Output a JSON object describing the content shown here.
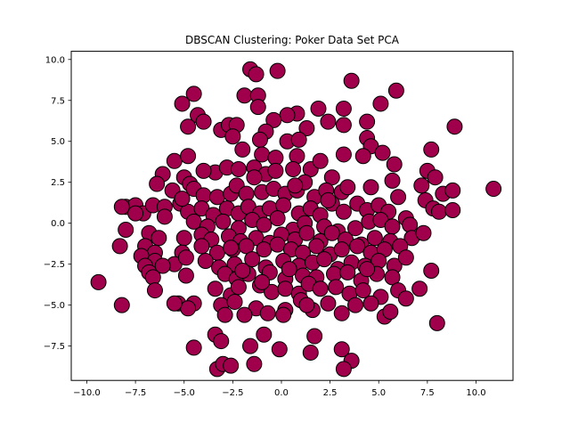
{
  "chart_data": {
    "type": "scatter",
    "title": "DBSCAN Clustering: Poker Data Set PCA",
    "xlabel": "",
    "ylabel": "",
    "xlim": [
      -10.8,
      11.9
    ],
    "ylim": [
      -9.6,
      10.5
    ],
    "xticks": [
      -10.0,
      -7.5,
      -5.0,
      -2.5,
      0.0,
      2.5,
      5.0,
      7.5,
      10.0
    ],
    "xtick_labels": [
      "−10.0",
      "−7.5",
      "−5.0",
      "−2.5",
      "0.0",
      "2.5",
      "5.0",
      "7.5",
      "10.0"
    ],
    "yticks": [
      -7.5,
      -5.0,
      -2.5,
      0.0,
      2.5,
      5.0,
      7.5,
      10.0
    ],
    "ytick_labels": [
      "−7.5",
      "−5.0",
      "−2.5",
      "0.0",
      "2.5",
      "5.0",
      "7.5",
      "10.0"
    ],
    "grid": false,
    "legend": false,
    "marker_color": "#a0004b",
    "marker_edge_color": "#000000",
    "series": [
      {
        "points": [
          [
            -1.6,
            9.4
          ],
          [
            -1.3,
            9.1
          ],
          [
            -0.2,
            9.3
          ],
          [
            3.6,
            8.7
          ],
          [
            5.9,
            8.1
          ],
          [
            -4.5,
            7.9
          ],
          [
            -1.9,
            7.8
          ],
          [
            -1.2,
            7.8
          ],
          [
            1.9,
            7.0
          ],
          [
            3.2,
            7.0
          ],
          [
            5.1,
            7.3
          ],
          [
            -5.1,
            7.3
          ],
          [
            -1.2,
            7.1
          ],
          [
            0.8,
            6.7
          ],
          [
            0.3,
            6.6
          ],
          [
            -4.3,
            6.6
          ],
          [
            -4.0,
            6.2
          ],
          [
            -3.1,
            5.7
          ],
          [
            -2.7,
            6.0
          ],
          [
            -2.3,
            6.0
          ],
          [
            -2.5,
            5.3
          ],
          [
            -0.4,
            6.3
          ],
          [
            -0.8,
            5.6
          ],
          [
            1.3,
            5.8
          ],
          [
            2.4,
            6.2
          ],
          [
            4.4,
            6.2
          ],
          [
            3.2,
            6.0
          ],
          [
            -4.8,
            5.9
          ],
          [
            0.3,
            5.0
          ],
          [
            0.9,
            5.1
          ],
          [
            4.4,
            5.2
          ],
          [
            4.6,
            4.7
          ],
          [
            5.2,
            4.3
          ],
          [
            7.7,
            4.5
          ],
          [
            8.9,
            5.9
          ],
          [
            -5.5,
            3.8
          ],
          [
            -4.8,
            4.1
          ],
          [
            -1.1,
            5.1
          ],
          [
            -2.0,
            4.5
          ],
          [
            -1.0,
            4.2
          ],
          [
            -0.3,
            4.0
          ],
          [
            0.8,
            4.1
          ],
          [
            -6.1,
            3.0
          ],
          [
            -5.0,
            2.8
          ],
          [
            -4.7,
            2.4
          ],
          [
            -3.4,
            3.1
          ],
          [
            -2.8,
            3.4
          ],
          [
            -2.2,
            3.3
          ],
          [
            -1.4,
            3.4
          ],
          [
            -0.8,
            3.0
          ],
          [
            -0.3,
            3.2
          ],
          [
            0.6,
            3.3
          ],
          [
            1.5,
            3.3
          ],
          [
            2.0,
            3.8
          ],
          [
            2.6,
            2.8
          ],
          [
            3.2,
            4.2
          ],
          [
            4.2,
            4.1
          ],
          [
            5.8,
            3.6
          ],
          [
            7.5,
            3.2
          ],
          [
            7.9,
            2.8
          ],
          [
            -6.4,
            2.4
          ],
          [
            -5.6,
            2.0
          ],
          [
            -4.5,
            2.1
          ],
          [
            -4.0,
            1.7
          ],
          [
            -3.3,
            1.6
          ],
          [
            -2.6,
            1.8
          ],
          [
            -2.3,
            2.3
          ],
          [
            -1.8,
            1.8
          ],
          [
            -1.0,
            1.9
          ],
          [
            -0.4,
            2.1
          ],
          [
            0.2,
            1.8
          ],
          [
            0.8,
            2.0
          ],
          [
            1.2,
            2.5
          ],
          [
            1.7,
            1.6
          ],
          [
            2.3,
            2.0
          ],
          [
            3.1,
            1.9
          ],
          [
            3.4,
            2.2
          ],
          [
            4.6,
            2.2
          ],
          [
            5.7,
            2.6
          ],
          [
            7.2,
            2.3
          ],
          [
            8.3,
            1.8
          ],
          [
            8.8,
            2.0
          ],
          [
            10.9,
            2.1
          ],
          [
            -8.0,
            1.0
          ],
          [
            -7.5,
            1.1
          ],
          [
            -7.1,
            0.6
          ],
          [
            -6.6,
            1.1
          ],
          [
            -6.0,
            1.0
          ],
          [
            -5.2,
            1.2
          ],
          [
            -4.8,
            0.7
          ],
          [
            -4.1,
            0.9
          ],
          [
            -3.5,
            0.5
          ],
          [
            -2.8,
            0.9
          ],
          [
            -2.2,
            0.6
          ],
          [
            -1.7,
            1.0
          ],
          [
            -1.1,
            0.6
          ],
          [
            -0.6,
            0.9
          ],
          [
            0.1,
            1.1
          ],
          [
            0.9,
            0.6
          ],
          [
            1.5,
            0.9
          ],
          [
            2.0,
            0.5
          ],
          [
            2.6,
            1.2
          ],
          [
            3.2,
            0.7
          ],
          [
            3.9,
            1.2
          ],
          [
            4.4,
            0.8
          ],
          [
            5.0,
            1.1
          ],
          [
            5.5,
            0.7
          ],
          [
            6.4,
            0.3
          ],
          [
            7.4,
            1.4
          ],
          [
            7.8,
            0.9
          ],
          [
            8.1,
            0.7
          ],
          [
            8.8,
            0.8
          ],
          [
            -8.2,
            1.0
          ],
          [
            -7.5,
            0.6
          ],
          [
            -6.0,
            0.4
          ],
          [
            -4.5,
            0.1
          ],
          [
            -3.8,
            -0.2
          ],
          [
            -3.0,
            0.1
          ],
          [
            -2.2,
            -0.3
          ],
          [
            -1.5,
            0.2
          ],
          [
            -0.9,
            -0.1
          ],
          [
            -0.2,
            0.3
          ],
          [
            0.6,
            -0.4
          ],
          [
            1.2,
            0.0
          ],
          [
            2.2,
            -0.2
          ],
          [
            2.9,
            -0.5
          ],
          [
            3.8,
            -0.3
          ],
          [
            4.5,
            0.1
          ],
          [
            5.1,
            0.2
          ],
          [
            5.7,
            -0.2
          ],
          [
            6.6,
            -0.1
          ],
          [
            -8.0,
            -0.4
          ],
          [
            -6.8,
            -0.6
          ],
          [
            -6.3,
            -0.9
          ],
          [
            -5.0,
            -0.9
          ],
          [
            -4.1,
            -0.7
          ],
          [
            -3.6,
            -1.0
          ],
          [
            -2.7,
            -0.8
          ],
          [
            -2.1,
            -1.1
          ],
          [
            -1.3,
            -0.9
          ],
          [
            -0.6,
            -1.2
          ],
          [
            0.0,
            -0.7
          ],
          [
            0.7,
            -1.0
          ],
          [
            1.3,
            -0.6
          ],
          [
            2.0,
            -1.1
          ],
          [
            2.6,
            -0.6
          ],
          [
            3.3,
            -1.0
          ],
          [
            4.1,
            -1.3
          ],
          [
            4.8,
            -0.9
          ],
          [
            5.6,
            -1.1
          ],
          [
            6.7,
            -0.9
          ],
          [
            7.3,
            -0.6
          ],
          [
            -8.3,
            -1.4
          ],
          [
            -7.0,
            -1.4
          ],
          [
            -6.5,
            -1.8
          ],
          [
            -5.1,
            -1.8
          ],
          [
            -4.1,
            -1.4
          ],
          [
            -3.3,
            -1.8
          ],
          [
            -2.5,
            -1.6
          ],
          [
            -1.8,
            -1.4
          ],
          [
            -0.9,
            -1.6
          ],
          [
            -0.2,
            -1.3
          ],
          [
            0.5,
            -1.6
          ],
          [
            1.1,
            -1.8
          ],
          [
            1.8,
            -1.4
          ],
          [
            2.5,
            -1.9
          ],
          [
            3.1,
            -1.6
          ],
          [
            3.9,
            -1.4
          ],
          [
            4.6,
            -1.8
          ],
          [
            5.3,
            -1.6
          ],
          [
            6.1,
            -1.4
          ],
          [
            -7.2,
            -2.0
          ],
          [
            -6.5,
            -2.3
          ],
          [
            -5.5,
            -2.5
          ],
          [
            -4.9,
            -2.1
          ],
          [
            -3.9,
            -2.3
          ],
          [
            -3.2,
            -2.7
          ],
          [
            -2.4,
            -2.5
          ],
          [
            -1.5,
            -2.2
          ],
          [
            -0.8,
            -2.7
          ],
          [
            0.1,
            -2.3
          ],
          [
            0.9,
            -2.6
          ],
          [
            1.6,
            -2.4
          ],
          [
            2.2,
            -2.2
          ],
          [
            2.9,
            -2.8
          ],
          [
            3.6,
            -2.4
          ],
          [
            4.3,
            -2.6
          ],
          [
            5.0,
            -2.3
          ],
          [
            5.8,
            -2.6
          ],
          [
            6.4,
            -2.1
          ],
          [
            -7.0,
            -2.6
          ],
          [
            -6.1,
            -2.6
          ],
          [
            -6.8,
            -3.0
          ],
          [
            -6.6,
            -3.3
          ],
          [
            -4.9,
            -3.2
          ],
          [
            -2.9,
            -3.1
          ],
          [
            -2.3,
            -3.4
          ],
          [
            -1.7,
            -3.1
          ],
          [
            -0.6,
            -3.0
          ],
          [
            0.2,
            -3.4
          ],
          [
            1.1,
            -3.2
          ],
          [
            1.8,
            -3.3
          ],
          [
            2.7,
            -3.1
          ],
          [
            3.4,
            -3.0
          ],
          [
            4.1,
            -3.5
          ],
          [
            4.9,
            -3.1
          ],
          [
            5.7,
            -3.3
          ],
          [
            7.7,
            -2.9
          ],
          [
            -6.5,
            -4.1
          ],
          [
            -5.3,
            -4.9
          ],
          [
            -4.5,
            -4.9
          ],
          [
            -3.4,
            -4.0
          ],
          [
            -2.6,
            -4.4
          ],
          [
            -2.2,
            -3.9
          ],
          [
            -1.1,
            -3.8
          ],
          [
            -0.5,
            -4.2
          ],
          [
            0.2,
            -4.0
          ],
          [
            0.9,
            -4.3
          ],
          [
            1.4,
            -3.7
          ],
          [
            2.0,
            -4.0
          ],
          [
            2.8,
            -3.9
          ],
          [
            3.5,
            -4.3
          ],
          [
            4.2,
            -4.1
          ],
          [
            5.1,
            -4.5
          ],
          [
            6.0,
            -4.1
          ],
          [
            7.1,
            -4.0
          ],
          [
            -9.4,
            -3.6
          ],
          [
            -8.2,
            -5.0
          ],
          [
            -4.8,
            -5.2
          ],
          [
            -3.1,
            -5.0
          ],
          [
            -2.4,
            -4.8
          ],
          [
            -1.3,
            -5.2
          ],
          [
            -0.7,
            -5.5
          ],
          [
            0.2,
            -5.3
          ],
          [
            1.0,
            -4.7
          ],
          [
            1.6,
            -5.3
          ],
          [
            2.4,
            -4.9
          ],
          [
            3.1,
            -5.5
          ],
          [
            3.8,
            -5.0
          ],
          [
            4.6,
            -4.9
          ],
          [
            5.3,
            -5.7
          ],
          [
            5.6,
            -5.4
          ],
          [
            6.4,
            -4.6
          ],
          [
            8.0,
            -6.1
          ],
          [
            -2.9,
            -5.6
          ],
          [
            -1.9,
            -5.6
          ],
          [
            0.1,
            -5.6
          ],
          [
            1.3,
            -5.0
          ],
          [
            -5.5,
            -4.9
          ],
          [
            -3.4,
            -6.8
          ],
          [
            -3.1,
            -7.2
          ],
          [
            -1.6,
            -7.5
          ],
          [
            -0.9,
            -6.8
          ],
          [
            -0.1,
            -7.7
          ],
          [
            1.7,
            -6.9
          ],
          [
            3.1,
            -7.7
          ],
          [
            -4.5,
            -7.6
          ],
          [
            -3.3,
            -8.9
          ],
          [
            -3.0,
            -8.6
          ],
          [
            -2.6,
            -8.7
          ],
          [
            -1.4,
            -8.6
          ],
          [
            1.5,
            -7.9
          ],
          [
            3.6,
            -8.4
          ],
          [
            3.2,
            -8.9
          ],
          [
            -2.0,
            -2.9
          ],
          [
            -2.6,
            -1.5
          ],
          [
            -1.0,
            -3.6
          ],
          [
            -4.0,
            3.2
          ],
          [
            2.4,
            1.4
          ],
          [
            0.4,
            -2.8
          ],
          [
            6.0,
            1.6
          ],
          [
            -5.1,
            1.5
          ],
          [
            0.7,
            2.3
          ],
          [
            4.4,
            -2.8
          ],
          [
            -1.4,
            2.8
          ]
        ]
      }
    ]
  }
}
